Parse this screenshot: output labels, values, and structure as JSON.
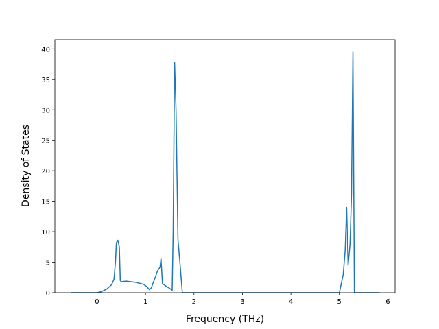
{
  "chart_data": {
    "type": "line",
    "x_label": "Frequency (THz)",
    "y_label": "Density of States",
    "series": [
      {
        "color": "#1f77b4",
        "x": [
          -0.54,
          0,
          0.1,
          0.2,
          0.3,
          0.35,
          0.38,
          0.4,
          0.43,
          0.46,
          0.48,
          0.5,
          0.6,
          0.8,
          0.95,
          1.03,
          1.08,
          1.12,
          1.2,
          1.25,
          1.3,
          1.32,
          1.35,
          1.4,
          1.5,
          1.55,
          1.57,
          1.6,
          1.63,
          1.67,
          1.72,
          1.76,
          2,
          4.9,
          5.0,
          5.08,
          5.12,
          5.15,
          5.18,
          5.22,
          5.25,
          5.28,
          5.31,
          5.83
        ],
        "values": [
          0,
          0,
          0.2,
          0.6,
          1.3,
          2.2,
          5,
          8.2,
          8.6,
          7.5,
          2,
          1.8,
          1.9,
          1.7,
          1.4,
          1.0,
          0.5,
          0.8,
          2.5,
          3.6,
          4.2,
          5.6,
          1.5,
          1.2,
          0.7,
          0.4,
          9.5,
          37.8,
          30,
          8.7,
          4,
          0,
          0,
          0,
          0,
          3,
          7,
          14,
          4.5,
          8,
          16,
          39.5,
          0,
          0
        ]
      }
    ],
    "xlim": [
      -0.87,
      6.15
    ],
    "xticks": [
      0,
      1,
      2,
      3,
      4,
      5,
      6
    ],
    "ylim": [
      0,
      41.5
    ],
    "yticks": [
      0,
      5,
      10,
      15,
      20,
      25,
      30,
      35,
      40
    ],
    "grid": false
  }
}
